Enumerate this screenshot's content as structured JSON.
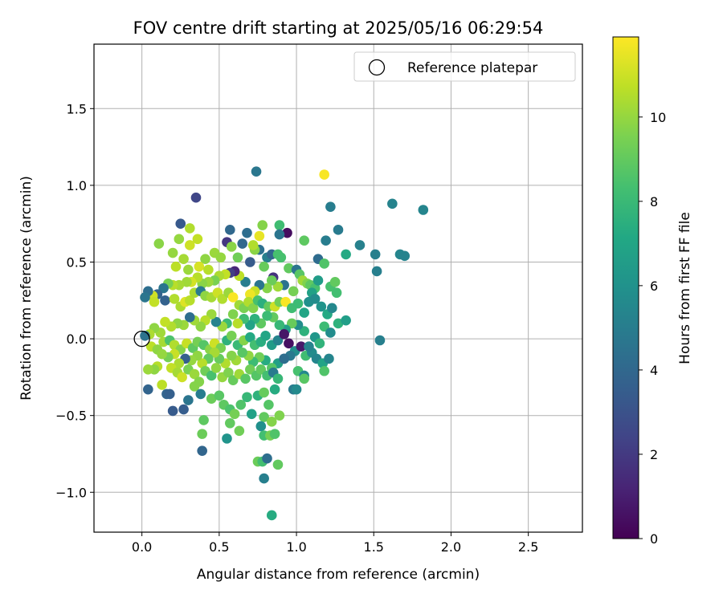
{
  "chart_data": {
    "type": "scatter",
    "title": "FOV centre drift starting at 2025/05/16 06:29:54",
    "xlabel": "Angular distance from reference (arcmin)",
    "ylabel": "Rotation from reference (arcmin)",
    "xlim": [
      -0.31,
      2.85
    ],
    "ylim": [
      -1.26,
      1.92
    ],
    "xticks": [
      0.0,
      0.5,
      1.0,
      1.5,
      2.0,
      2.5
    ],
    "xtick_labels": [
      "0.0",
      "0.5",
      "1.0",
      "1.5",
      "2.0",
      "2.5"
    ],
    "yticks": [
      -1.0,
      -0.5,
      0.0,
      0.5,
      1.0,
      1.5
    ],
    "ytick_labels": [
      "−1.0",
      "−0.5",
      "0.0",
      "0.5",
      "1.0",
      "1.5"
    ],
    "grid": true,
    "legend": {
      "placement": "top-right",
      "entries": [
        "Reference platepar"
      ]
    },
    "reference_point": {
      "x": 0.0,
      "y": 0.0,
      "marker": "hollow-circle"
    },
    "colorbar": {
      "label": "Hours from first FF file",
      "colormap": "viridis",
      "range": [
        0,
        11.9
      ],
      "ticks": [
        0,
        2,
        4,
        6,
        8,
        10
      ],
      "tick_labels": [
        "0",
        "2",
        "4",
        "6",
        "8",
        "10"
      ]
    },
    "points": [
      [
        0.74,
        1.09,
        4.7
      ],
      [
        1.18,
        1.07,
        11.8
      ],
      [
        0.35,
        0.92,
        2.5
      ],
      [
        1.22,
        0.86,
        5.0
      ],
      [
        1.62,
        0.88,
        5.3
      ],
      [
        1.82,
        0.84,
        5.4
      ],
      [
        0.25,
        0.75,
        3.3
      ],
      [
        0.31,
        0.72,
        10.5
      ],
      [
        0.57,
        0.71,
        4.0
      ],
      [
        0.68,
        0.69,
        4.3
      ],
      [
        0.78,
        0.74,
        9.7
      ],
      [
        0.89,
        0.74,
        8.2
      ],
      [
        0.94,
        0.69,
        0.4
      ],
      [
        1.27,
        0.71,
        4.9
      ],
      [
        1.19,
        0.64,
        5.0
      ],
      [
        1.05,
        0.64,
        8.9
      ],
      [
        0.89,
        0.68,
        4.6
      ],
      [
        1.41,
        0.61,
        5.2
      ],
      [
        1.51,
        0.55,
        5.1
      ],
      [
        1.67,
        0.55,
        5.4
      ],
      [
        1.7,
        0.54,
        5.3
      ],
      [
        1.32,
        0.55,
        7.2
      ],
      [
        1.52,
        0.44,
        5.1
      ],
      [
        1.14,
        0.52,
        4.2
      ],
      [
        0.65,
        0.62,
        4.0
      ],
      [
        0.76,
        0.58,
        4.4
      ],
      [
        0.81,
        0.53,
        5.1
      ],
      [
        0.2,
        0.56,
        10.0
      ],
      [
        0.11,
        0.62,
        9.8
      ],
      [
        0.24,
        0.65,
        10.0
      ],
      [
        0.31,
        0.61,
        11.0
      ],
      [
        0.36,
        0.65,
        10.8
      ],
      [
        0.27,
        0.52,
        10.3
      ],
      [
        0.22,
        0.47,
        10.7
      ],
      [
        0.3,
        0.45,
        10.1
      ],
      [
        0.41,
        0.52,
        9.9
      ],
      [
        0.47,
        0.56,
        10.1
      ],
      [
        0.51,
        0.53,
        10.0
      ],
      [
        0.37,
        0.47,
        11.2
      ],
      [
        0.43,
        0.45,
        10.6
      ],
      [
        0.55,
        0.63,
        1.9
      ],
      [
        0.58,
        0.6,
        9.8
      ],
      [
        0.62,
        0.53,
        9.3
      ],
      [
        0.7,
        0.5,
        3.4
      ],
      [
        0.73,
        0.58,
        9.8
      ],
      [
        0.72,
        0.61,
        10.5
      ],
      [
        0.76,
        0.67,
        11.5
      ],
      [
        0.79,
        0.47,
        9.1
      ],
      [
        0.84,
        0.55,
        3.9
      ],
      [
        0.88,
        0.55,
        8.4
      ],
      [
        0.9,
        0.53,
        8.4
      ],
      [
        0.85,
        0.4,
        1.7
      ],
      [
        0.95,
        0.46,
        9.0
      ],
      [
        1.0,
        0.45,
        4.6
      ],
      [
        1.02,
        0.42,
        8.8
      ],
      [
        1.04,
        0.38,
        10.2
      ],
      [
        1.07,
        0.36,
        9.6
      ],
      [
        1.09,
        0.35,
        8.9
      ],
      [
        1.12,
        0.33,
        8.4
      ],
      [
        1.18,
        0.49,
        8.6
      ],
      [
        1.22,
        0.34,
        8.4
      ],
      [
        1.25,
        0.37,
        9.0
      ],
      [
        1.26,
        0.3,
        8.3
      ],
      [
        1.14,
        0.38,
        6.5
      ],
      [
        1.1,
        0.3,
        6.8
      ],
      [
        0.98,
        0.31,
        9.4
      ],
      [
        0.92,
        0.35,
        4.5
      ],
      [
        0.88,
        0.34,
        10.2
      ],
      [
        0.84,
        0.38,
        9.2
      ],
      [
        0.81,
        0.33,
        9.7
      ],
      [
        0.76,
        0.35,
        4.6
      ],
      [
        0.73,
        0.31,
        10.9
      ],
      [
        0.7,
        0.29,
        11.6
      ],
      [
        0.67,
        0.37,
        5.0
      ],
      [
        0.63,
        0.41,
        10.7
      ],
      [
        0.6,
        0.44,
        1.3
      ],
      [
        0.57,
        0.43,
        2.2
      ],
      [
        0.54,
        0.42,
        10.8
      ],
      [
        0.5,
        0.41,
        10.4
      ],
      [
        0.47,
        0.38,
        9.5
      ],
      [
        0.43,
        0.37,
        10.1
      ],
      [
        0.39,
        0.36,
        9.8
      ],
      [
        0.36,
        0.4,
        10.6
      ],
      [
        0.32,
        0.37,
        11.1
      ],
      [
        0.29,
        0.37,
        10.2
      ],
      [
        0.24,
        0.35,
        10.3
      ],
      [
        0.2,
        0.35,
        10.6
      ],
      [
        0.17,
        0.36,
        9.5
      ],
      [
        0.14,
        0.33,
        4.6
      ],
      [
        0.1,
        0.29,
        3.8
      ],
      [
        0.07,
        0.28,
        11.0
      ],
      [
        0.04,
        0.31,
        4.3
      ],
      [
        0.02,
        0.27,
        4.6
      ],
      [
        0.08,
        0.24,
        10.8
      ],
      [
        0.15,
        0.25,
        3.7
      ],
      [
        0.21,
        0.26,
        10.5
      ],
      [
        0.25,
        0.21,
        10.4
      ],
      [
        0.28,
        0.24,
        11.3
      ],
      [
        0.31,
        0.25,
        10.6
      ],
      [
        0.34,
        0.3,
        10.4
      ],
      [
        0.38,
        0.31,
        4.9
      ],
      [
        0.41,
        0.28,
        9.9
      ],
      [
        0.45,
        0.27,
        10.3
      ],
      [
        0.49,
        0.3,
        11.0
      ],
      [
        0.52,
        0.26,
        10.5
      ],
      [
        0.56,
        0.3,
        10.1
      ],
      [
        0.59,
        0.27,
        11.8
      ],
      [
        0.63,
        0.22,
        10.2
      ],
      [
        0.66,
        0.2,
        9.5
      ],
      [
        0.69,
        0.24,
        10.5
      ],
      [
        0.72,
        0.2,
        9.7
      ],
      [
        0.75,
        0.25,
        8.4
      ],
      [
        0.78,
        0.23,
        7.5
      ],
      [
        0.82,
        0.21,
        9.0
      ],
      [
        0.86,
        0.21,
        11.0
      ],
      [
        0.89,
        0.24,
        9.3
      ],
      [
        0.93,
        0.24,
        11.8
      ],
      [
        0.97,
        0.2,
        8.2
      ],
      [
        1.01,
        0.23,
        8.1
      ],
      [
        1.05,
        0.17,
        7.0
      ],
      [
        1.08,
        0.24,
        5.9
      ],
      [
        1.12,
        0.26,
        5.7
      ],
      [
        1.16,
        0.21,
        6.1
      ],
      [
        1.2,
        0.16,
        7.2
      ],
      [
        1.23,
        0.2,
        5.5
      ],
      [
        1.18,
        0.08,
        8.1
      ],
      [
        1.22,
        0.04,
        5.7
      ],
      [
        1.27,
        0.1,
        7.6
      ],
      [
        1.32,
        0.12,
        6.6
      ],
      [
        1.54,
        -0.01,
        5.1
      ],
      [
        1.12,
        0.01,
        6.2
      ],
      [
        1.05,
        0.05,
        7.6
      ],
      [
        1.01,
        0.09,
        5.8
      ],
      [
        0.97,
        0.1,
        9.1
      ],
      [
        0.93,
        0.06,
        6.7
      ],
      [
        0.89,
        0.09,
        7.9
      ],
      [
        0.85,
        0.14,
        9.0
      ],
      [
        0.81,
        0.15,
        8.1
      ],
      [
        0.77,
        0.1,
        8.9
      ],
      [
        0.73,
        0.13,
        7.6
      ],
      [
        0.7,
        0.09,
        6.9
      ],
      [
        0.66,
        0.13,
        8.2
      ],
      [
        0.62,
        0.1,
        10.6
      ],
      [
        0.59,
        0.16,
        9.6
      ],
      [
        0.55,
        0.1,
        8.1
      ],
      [
        0.52,
        0.08,
        10.1
      ],
      [
        0.48,
        0.11,
        5.3
      ],
      [
        0.45,
        0.16,
        10.1
      ],
      [
        0.41,
        0.12,
        10.6
      ],
      [
        0.38,
        0.08,
        9.9
      ],
      [
        0.34,
        0.12,
        10.2
      ],
      [
        0.31,
        0.14,
        4.3
      ],
      [
        0.27,
        0.09,
        10.1
      ],
      [
        0.23,
        0.1,
        9.9
      ],
      [
        0.19,
        0.08,
        10.5
      ],
      [
        0.15,
        0.11,
        10.8
      ],
      [
        0.12,
        0.04,
        10.2
      ],
      [
        0.08,
        0.07,
        9.9
      ],
      [
        0.05,
        0.03,
        10.4
      ],
      [
        0.02,
        0.02,
        4.5
      ],
      [
        0.06,
        -0.05,
        10.7
      ],
      [
        0.1,
        -0.07,
        9.9
      ],
      [
        0.14,
        -0.02,
        10.3
      ],
      [
        0.18,
        -0.01,
        8.5
      ],
      [
        0.21,
        -0.04,
        10.5
      ],
      [
        0.25,
        -0.07,
        9.7
      ],
      [
        0.29,
        -0.03,
        10.9
      ],
      [
        0.33,
        -0.06,
        8.9
      ],
      [
        0.36,
        -0.02,
        9.4
      ],
      [
        0.4,
        -0.04,
        8.7
      ],
      [
        0.44,
        -0.07,
        9.8
      ],
      [
        0.47,
        -0.03,
        11.0
      ],
      [
        0.51,
        -0.06,
        9.5
      ],
      [
        0.55,
        -0.01,
        7.6
      ],
      [
        0.58,
        0.02,
        9.4
      ],
      [
        0.62,
        -0.04,
        8.0
      ],
      [
        0.66,
        -0.01,
        9.7
      ],
      [
        0.7,
        0.01,
        7.2
      ],
      [
        0.73,
        -0.04,
        8.3
      ],
      [
        0.77,
        -0.02,
        7.4
      ],
      [
        0.8,
        0.02,
        7.0
      ],
      [
        0.84,
        -0.04,
        6.5
      ],
      [
        0.88,
        -0.01,
        5.3
      ],
      [
        0.92,
        0.03,
        0.7
      ],
      [
        0.95,
        -0.03,
        0.5
      ],
      [
        0.99,
        -0.08,
        5.8
      ],
      [
        1.03,
        -0.05,
        0.8
      ],
      [
        1.06,
        -0.11,
        8.2
      ],
      [
        1.1,
        -0.09,
        5.7
      ],
      [
        1.13,
        -0.13,
        5.4
      ],
      [
        1.17,
        -0.16,
        6.9
      ],
      [
        1.01,
        -0.21,
        8.4
      ],
      [
        1.05,
        -0.24,
        5.5
      ],
      [
        0.96,
        -0.11,
        4.8
      ],
      [
        0.92,
        -0.13,
        4.4
      ],
      [
        0.88,
        -0.16,
        6.7
      ],
      [
        0.84,
        -0.19,
        8.7
      ],
      [
        0.8,
        -0.14,
        7.3
      ],
      [
        0.76,
        -0.12,
        9.3
      ],
      [
        0.72,
        -0.15,
        8.1
      ],
      [
        0.69,
        -0.11,
        9.9
      ],
      [
        0.65,
        -0.09,
        8.8
      ],
      [
        0.61,
        -0.14,
        10.2
      ],
      [
        0.58,
        -0.11,
        9.7
      ],
      [
        0.54,
        -0.16,
        10.5
      ],
      [
        0.5,
        -0.13,
        9.1
      ],
      [
        0.47,
        -0.09,
        10.3
      ],
      [
        0.43,
        -0.13,
        9.0
      ],
      [
        0.39,
        -0.16,
        10.6
      ],
      [
        0.36,
        -0.11,
        9.9
      ],
      [
        0.32,
        -0.14,
        10.0
      ],
      [
        0.28,
        -0.13,
        3.6
      ],
      [
        0.24,
        -0.16,
        10.4
      ],
      [
        0.21,
        -0.1,
        10.9
      ],
      [
        0.17,
        -0.12,
        9.4
      ],
      [
        0.13,
        -0.1,
        10.0
      ],
      [
        0.1,
        -0.18,
        10.6
      ],
      [
        0.08,
        -0.2,
        9.9
      ],
      [
        0.19,
        -0.19,
        10.8
      ],
      [
        0.23,
        -0.22,
        10.3
      ],
      [
        0.26,
        -0.25,
        11.0
      ],
      [
        0.3,
        -0.2,
        9.5
      ],
      [
        0.34,
        -0.23,
        10.1
      ],
      [
        0.37,
        -0.28,
        9.7
      ],
      [
        0.41,
        -0.21,
        9.3
      ],
      [
        0.45,
        -0.24,
        8.4
      ],
      [
        0.48,
        -0.19,
        9.9
      ],
      [
        0.52,
        -0.25,
        10.0
      ],
      [
        0.56,
        -0.22,
        9.6
      ],
      [
        0.59,
        -0.27,
        9.1
      ],
      [
        0.63,
        -0.23,
        10.2
      ],
      [
        0.67,
        -0.26,
        8.8
      ],
      [
        0.7,
        -0.2,
        9.3
      ],
      [
        0.74,
        -0.24,
        8.7
      ],
      [
        0.77,
        -0.2,
        9.0
      ],
      [
        0.81,
        -0.24,
        8.3
      ],
      [
        0.85,
        -0.22,
        4.9
      ],
      [
        0.88,
        -0.26,
        7.9
      ],
      [
        0.92,
        -0.13,
        4.3
      ],
      [
        0.98,
        -0.33,
        4.9
      ],
      [
        1.05,
        -0.26,
        8.8
      ],
      [
        1.18,
        -0.21,
        8.6
      ],
      [
        1.21,
        -0.13,
        5.4
      ],
      [
        0.04,
        -0.2,
        10.1
      ],
      [
        0.13,
        -0.3,
        10.7
      ],
      [
        0.16,
        -0.36,
        3.8
      ],
      [
        0.18,
        -0.36,
        3.6
      ],
      [
        0.04,
        -0.33,
        3.8
      ],
      [
        0.2,
        -0.47,
        3.4
      ],
      [
        0.27,
        -0.46,
        3.5
      ],
      [
        0.3,
        -0.4,
        4.6
      ],
      [
        0.34,
        -0.31,
        9.7
      ],
      [
        0.38,
        -0.36,
        5.0
      ],
      [
        0.45,
        -0.39,
        9.2
      ],
      [
        0.5,
        -0.37,
        8.8
      ],
      [
        0.53,
        -0.43,
        8.9
      ],
      [
        0.57,
        -0.46,
        8.5
      ],
      [
        0.6,
        -0.49,
        9.4
      ],
      [
        0.64,
        -0.43,
        8.6
      ],
      [
        0.68,
        -0.38,
        7.9
      ],
      [
        0.71,
        -0.49,
        6.8
      ],
      [
        0.75,
        -0.37,
        7.6
      ],
      [
        0.79,
        -0.35,
        9.1
      ],
      [
        0.82,
        -0.43,
        8.7
      ],
      [
        0.86,
        -0.33,
        7.3
      ],
      [
        0.79,
        -0.51,
        9.0
      ],
      [
        0.84,
        -0.54,
        9.7
      ],
      [
        0.89,
        -0.5,
        9.6
      ],
      [
        0.77,
        -0.57,
        5.9
      ],
      [
        0.79,
        -0.63,
        8.3
      ],
      [
        0.83,
        -0.63,
        9.4
      ],
      [
        0.86,
        -0.62,
        8.6
      ],
      [
        0.63,
        -0.6,
        9.3
      ],
      [
        0.55,
        -0.65,
        6.1
      ],
      [
        0.57,
        -0.55,
        9.0
      ],
      [
        0.4,
        -0.53,
        8.9
      ],
      [
        0.39,
        -0.62,
        9.2
      ],
      [
        0.39,
        -0.73,
        3.9
      ],
      [
        0.75,
        -0.8,
        9.2
      ],
      [
        0.78,
        -0.8,
        8.3
      ],
      [
        0.81,
        -0.78,
        4.3
      ],
      [
        0.88,
        -0.82,
        9.0
      ],
      [
        0.79,
        -0.91,
        5.1
      ],
      [
        0.84,
        -1.15,
        7.3
      ],
      [
        1.0,
        -0.33,
        5.6
      ],
      [
        1.08,
        -0.05,
        5.3
      ],
      [
        1.15,
        -0.03,
        7.7
      ]
    ]
  }
}
